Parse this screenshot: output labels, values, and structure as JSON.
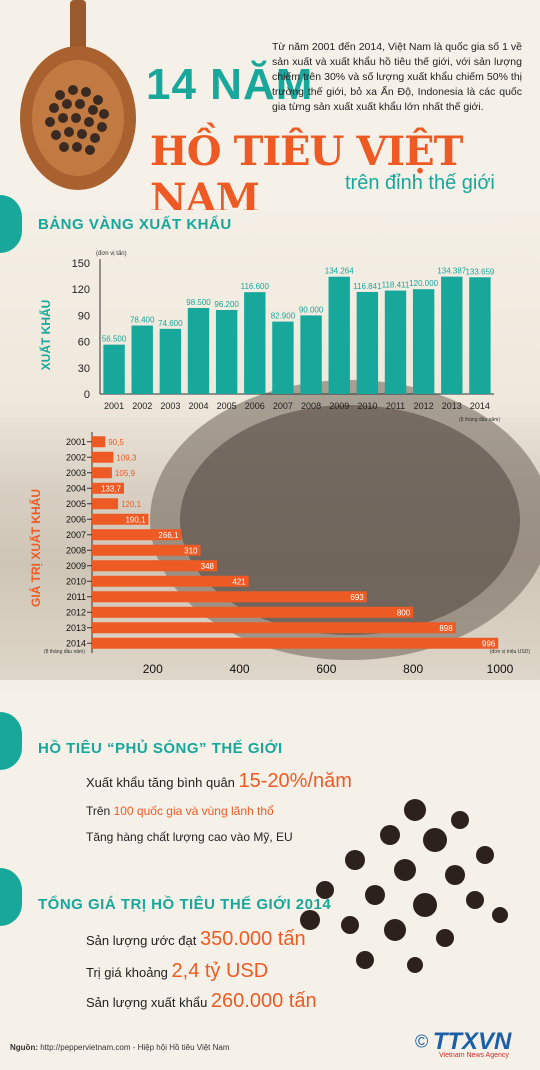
{
  "header": {
    "title_line1": "14 NĂM",
    "title_line2": "HỒ TIÊU VIỆT NAM",
    "title_line3": "trên đỉnh thế giới",
    "intro": "Từ năm 2001 đến 2014, Việt Nam là quốc gia số 1 về sản xuất và xuất khẩu hồ tiêu thế giới, với sản lượng chiếm trên 30% và số lượng xuất khẩu chiếm 50% thị trường thế giới, bỏ xa Ấn Độ, Indonesia là các quốc gia từng sản xuất xuất khẩu lớn nhất thế giới."
  },
  "section1": {
    "title": "BẢNG VÀNG XUẤT KHẨU"
  },
  "chart_data": [
    {
      "type": "bar",
      "ylabel": "XUẤT KHẨU",
      "unit_note": "(đơn vị tấn)",
      "x_note": "(8 tháng đầu năm)",
      "categories": [
        "2001",
        "2002",
        "2003",
        "2004",
        "2005",
        "2006",
        "2007",
        "2008",
        "2009",
        "2010",
        "2011",
        "2012",
        "2013",
        "2014"
      ],
      "values": [
        56.5,
        78.4,
        74.6,
        98.5,
        96.2,
        116.6,
        82.9,
        90.0,
        134.264,
        116.841,
        118.411,
        120.0,
        134.387,
        133.659
      ],
      "value_labels": [
        "56.500",
        "78.400",
        "74.600",
        "98.500",
        "96.200",
        "116.600",
        "82.900",
        "90.000",
        "134.264",
        "116.841",
        "118.411",
        "120.000",
        "134.387",
        "133.659"
      ],
      "yticks": [
        "150",
        "120",
        "90",
        "60",
        "30",
        "0"
      ],
      "ylim": [
        0,
        150
      ],
      "color": "#17a79b"
    },
    {
      "type": "bar",
      "orientation": "horizontal",
      "ylabel": "GIÁ TRỊ XUẤT KHẨU",
      "unit_note": "(đơn vị triệu USD)",
      "y_note": "(8 tháng đầu năm)",
      "categories": [
        "2001",
        "2002",
        "2003",
        "2004",
        "2005",
        "2006",
        "2007",
        "2008",
        "2009",
        "2010",
        "2011",
        "2012",
        "2013",
        "2014"
      ],
      "values": [
        90.5,
        109.3,
        105.9,
        133.7,
        120.1,
        190.1,
        266.1,
        310,
        348,
        421,
        693,
        800,
        898,
        996
      ],
      "value_labels": [
        "90,5",
        "109,3",
        "105,9",
        "133,7",
        "120,1",
        "190,1",
        "266,1",
        "310",
        "348",
        "421",
        "693",
        "800",
        "898",
        "996"
      ],
      "xticks": [
        "200",
        "400",
        "600",
        "800",
        "1000"
      ],
      "xlim": [
        60,
        1000
      ],
      "color": "#ee5a24"
    }
  ],
  "section2": {
    "title": "HỒ TIÊU “PHỦ SÓNG” THẾ GIỚI",
    "line1_prefix": "Xuất khẩu tăng bình quân ",
    "line1_value": "15-20%/năm",
    "line2_prefix": "Trên ",
    "line2_value": "100 quốc gia và vùng lãnh thổ",
    "line3": "Tăng hàng chất lượng cao vào Mỹ, EU"
  },
  "section3": {
    "title": "TỔNG GIÁ TRỊ HỒ TIÊU THẾ GIỚI 2014",
    "line1_prefix": "Sản lượng ước đạt ",
    "line1_value": "350.000 tấn",
    "line2_prefix": "Trị giá khoảng ",
    "line2_value": "2,4 tỷ USD",
    "line3_prefix": "Sản lượng xuất khẩu ",
    "line3_value": "260.000 tấn"
  },
  "footer": {
    "source_label": "Nguồn:",
    "source_text": "http://peppervietnam.com - Hiệp hội Hồ tiêu Việt Nam",
    "logo_text": "TTXVN",
    "logo_sub": "Vietnam News Agency",
    "copyright": "©"
  },
  "colors": {
    "teal": "#17a79b",
    "orange": "#ee5a24"
  }
}
